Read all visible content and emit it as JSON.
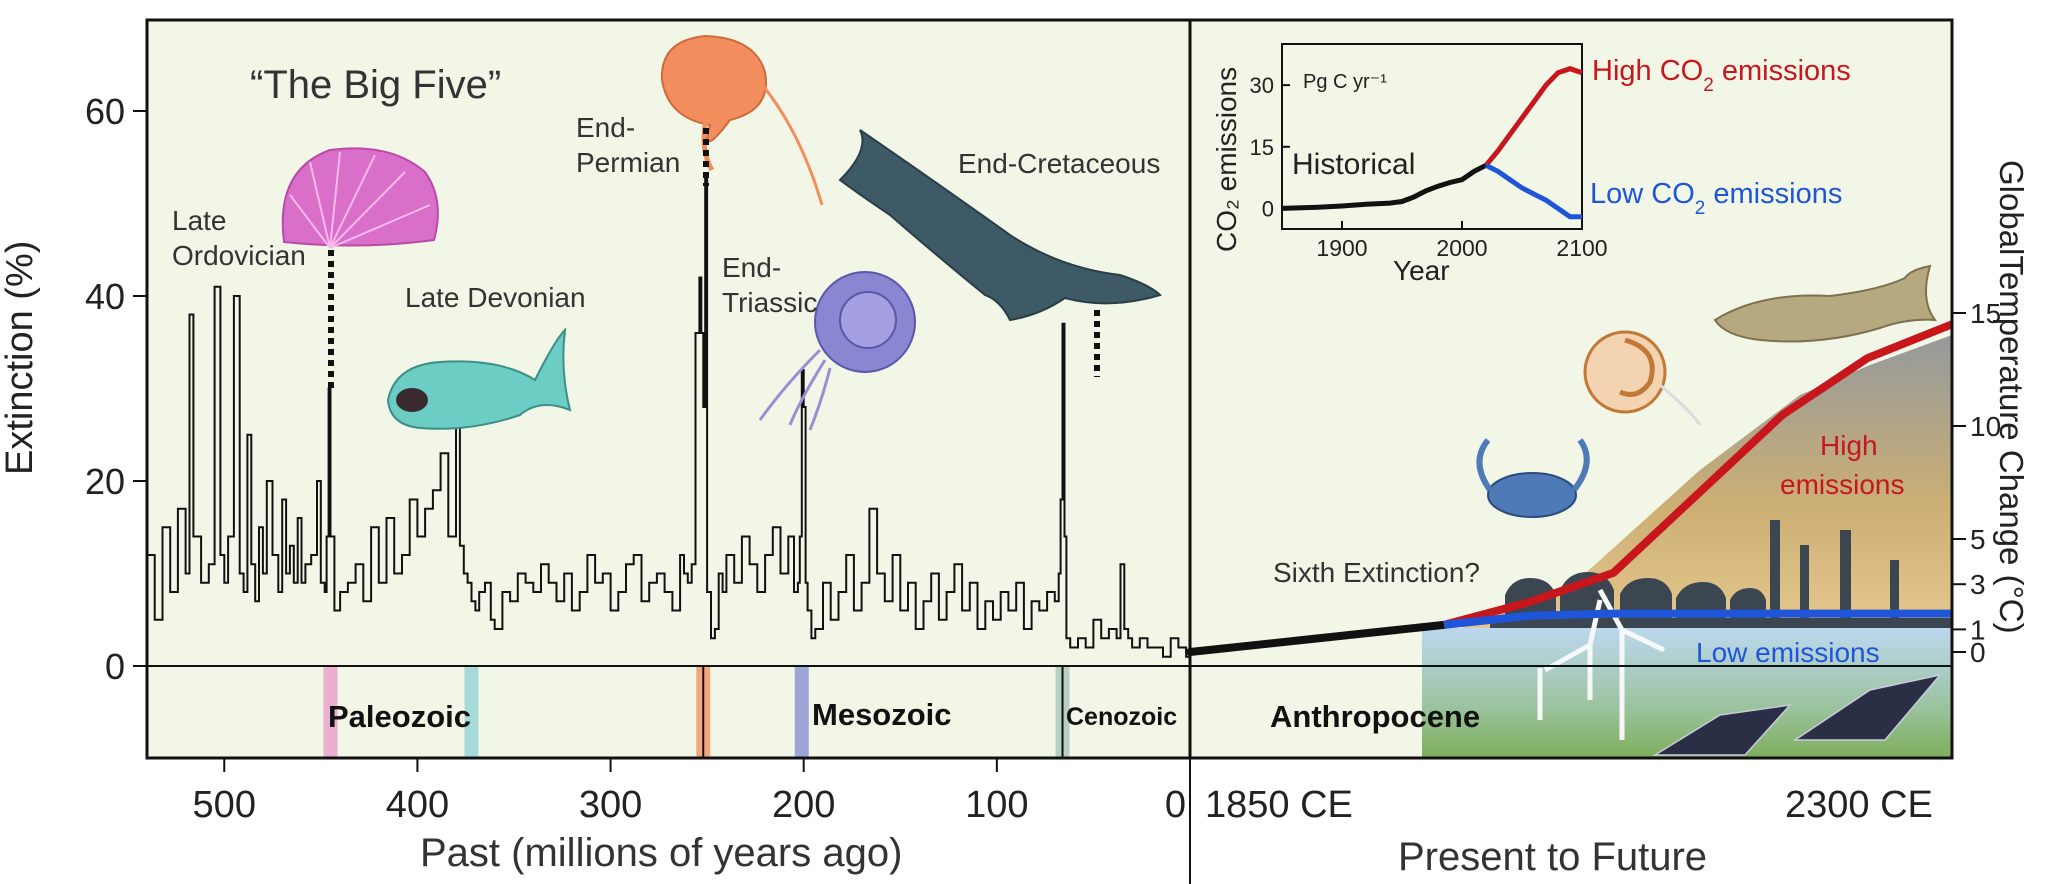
{
  "chart_data": [
    {
      "type": "line",
      "panel": "past",
      "ylabel": "Extinction (%)",
      "xlabel": "Past (millions of years ago)",
      "title": "“The Big Five”",
      "xlim": [
        540,
        0
      ],
      "ylim": [
        -10,
        70
      ],
      "x_ticks": [
        500,
        400,
        300,
        200,
        100,
        0
      ],
      "y_ticks": [
        0,
        20,
        40,
        60
      ],
      "series": [
        {
          "name": "Extinction",
          "x": [
            540,
            536,
            532,
            528,
            524,
            520,
            518,
            516,
            512,
            508,
            505,
            502,
            500,
            498,
            495,
            492,
            490,
            488,
            486,
            484,
            482,
            480,
            478,
            475,
            472,
            470,
            468,
            466,
            464,
            462,
            460,
            458,
            455,
            452,
            450,
            448,
            447,
            446,
            445,
            443,
            440,
            436,
            432,
            428,
            424,
            420,
            416,
            412,
            408,
            404,
            400,
            396,
            392,
            388,
            384,
            380,
            378,
            376,
            374,
            372,
            370,
            368,
            365,
            362,
            360,
            356,
            352,
            348,
            344,
            340,
            336,
            332,
            328,
            324,
            320,
            316,
            312,
            308,
            304,
            300,
            296,
            292,
            288,
            284,
            280,
            276,
            272,
            268,
            264,
            262,
            260,
            258,
            256,
            254,
            253,
            252,
            251,
            250,
            248,
            246,
            244,
            242,
            240,
            236,
            232,
            228,
            224,
            220,
            216,
            212,
            208,
            205,
            203,
            202,
            201,
            200,
            199,
            198,
            196,
            194,
            190,
            186,
            182,
            178,
            174,
            170,
            166,
            162,
            158,
            154,
            150,
            146,
            142,
            138,
            134,
            130,
            126,
            122,
            118,
            114,
            110,
            106,
            102,
            98,
            94,
            90,
            86,
            82,
            78,
            74,
            70,
            68,
            67,
            66,
            65,
            64,
            62,
            58,
            54,
            50,
            46,
            42,
            38,
            36,
            34,
            32,
            30,
            26,
            22,
            18,
            14,
            10,
            6,
            2,
            0
          ],
          "values": [
            12,
            5,
            15,
            8,
            17,
            10,
            38,
            14,
            9,
            11,
            41,
            12,
            9,
            14,
            40,
            10,
            8,
            25,
            11,
            7,
            15,
            10,
            20,
            12,
            8,
            18,
            10,
            13,
            9,
            16,
            9,
            11,
            12,
            20,
            9,
            8,
            14,
            30,
            14,
            6,
            8,
            9,
            11,
            7,
            15,
            9,
            16,
            10,
            12,
            18,
            14,
            17,
            19,
            23,
            14,
            30,
            13,
            10,
            9,
            7,
            6,
            8,
            9,
            5,
            4,
            8,
            7,
            10,
            9,
            8,
            11,
            9,
            7,
            10,
            6,
            8,
            12,
            9,
            10,
            6,
            8,
            11,
            12,
            7,
            9,
            10,
            8,
            6,
            12,
            10,
            9,
            11,
            36,
            42,
            36,
            28,
            53,
            8,
            3,
            4,
            10,
            8,
            12,
            9,
            14,
            11,
            8,
            12,
            15,
            10,
            14,
            8,
            9,
            14,
            32,
            28,
            9,
            6,
            3,
            4,
            9,
            5,
            8,
            12,
            6,
            9,
            17,
            10,
            7,
            12,
            6,
            9,
            4,
            7,
            10,
            5,
            8,
            11,
            6,
            9,
            4,
            7,
            5,
            8,
            6,
            9,
            4,
            7,
            6,
            8,
            7,
            10,
            18,
            37,
            14,
            3,
            2,
            3,
            2,
            5,
            3,
            4,
            3,
            11,
            4,
            3,
            2,
            3,
            2,
            2,
            1,
            3,
            2,
            1,
            1
          ]
        }
      ],
      "events": [
        {
          "name": "Late\nOrdovician",
          "x": 445,
          "y": 30
        },
        {
          "name": "Late Devonian",
          "x": 372,
          "y": 23
        },
        {
          "name": "End-\nPermian",
          "x": 252,
          "y": 52
        },
        {
          "name": "End-\nTriassic",
          "x": 201,
          "y": 32
        },
        {
          "name": "End-Cretaceous",
          "x": 66,
          "y": 37
        }
      ],
      "eras": [
        {
          "name": "Paleozoic",
          "from": 540,
          "to": 252
        },
        {
          "name": "Mesozoic",
          "from": 252,
          "to": 66
        },
        {
          "name": "Cenozoic",
          "from": 66,
          "to": 0
        }
      ],
      "event_bands": [
        {
          "x": 445,
          "color": "#e9b0d0"
        },
        {
          "x": 372,
          "color": "#a6dad8"
        },
        {
          "x": 252,
          "color": "#f4a77f"
        },
        {
          "x": 201,
          "color": "#9ea6d8"
        },
        {
          "x": 66,
          "color": "#b8d0c2"
        }
      ]
    },
    {
      "type": "line",
      "panel": "future",
      "xlabel": "Present to Future",
      "ylabel": "GlobalTemperature Change (°C)",
      "x_range_labels": [
        "1850 CE",
        "2300 CE"
      ],
      "xlim": [
        1850,
        2300
      ],
      "y_ticks": [
        0,
        1,
        3,
        5,
        10,
        15
      ],
      "era": "Anthropocene",
      "annotation": "Sixth Extinction?",
      "series": [
        {
          "name": "Historical",
          "color": "#111111",
          "x": [
            1850,
            2000
          ],
          "values": [
            0,
            1.2
          ]
        },
        {
          "name": "High emissions",
          "color": "#c8161d",
          "x": [
            2000,
            2050,
            2100,
            2150,
            2200,
            2250,
            2300
          ],
          "values": [
            1.2,
            2.2,
            3.5,
            7,
            10.5,
            13,
            14.5
          ]
        },
        {
          "name": "Low emissions",
          "color": "#1f55d8",
          "x": [
            2000,
            2050,
            2100,
            2300
          ],
          "values": [
            1.2,
            1.6,
            1.7,
            1.7
          ]
        }
      ]
    },
    {
      "type": "line",
      "panel": "inset",
      "xlabel": "Year",
      "ylabel": "CO₂ emissions",
      "unit_label": "Pg C yr⁻¹",
      "xlim": [
        1850,
        2100
      ],
      "ylim": [
        -5,
        40
      ],
      "x_ticks": [
        1900,
        2000,
        2100
      ],
      "y_ticks": [
        0,
        15,
        30
      ],
      "series": [
        {
          "name": "Historical",
          "color": "#111111",
          "x": [
            1850,
            1880,
            1900,
            1920,
            1940,
            1950,
            1960,
            1970,
            1980,
            1990,
            2000,
            2010,
            2020
          ],
          "values": [
            0,
            0.3,
            0.6,
            1,
            1.3,
            1.7,
            2.8,
            4.3,
            5.4,
            6.3,
            7.0,
            9.0,
            10.5
          ]
        },
        {
          "name": "High CO₂ emissions",
          "color": "#c8161d",
          "x": [
            2020,
            2030,
            2040,
            2050,
            2060,
            2070,
            2080,
            2090,
            2100
          ],
          "values": [
            10.5,
            14,
            18,
            22,
            26,
            30,
            33,
            34,
            33
          ]
        },
        {
          "name": "Low CO₂ emissions",
          "color": "#1f55d8",
          "x": [
            2020,
            2030,
            2040,
            2050,
            2060,
            2070,
            2080,
            2090,
            2100
          ],
          "values": [
            10.5,
            9,
            7,
            5,
            3.5,
            2,
            0,
            -2,
            -2
          ]
        }
      ],
      "legend_labels": {
        "historical": "Historical",
        "high": "High CO2 emissions",
        "low": "Low CO2 emissions"
      }
    }
  ],
  "colors": {
    "panel_bg": "#f1f6e6",
    "axis": "#111111",
    "high": "#c8161d",
    "low": "#1f55d8"
  }
}
